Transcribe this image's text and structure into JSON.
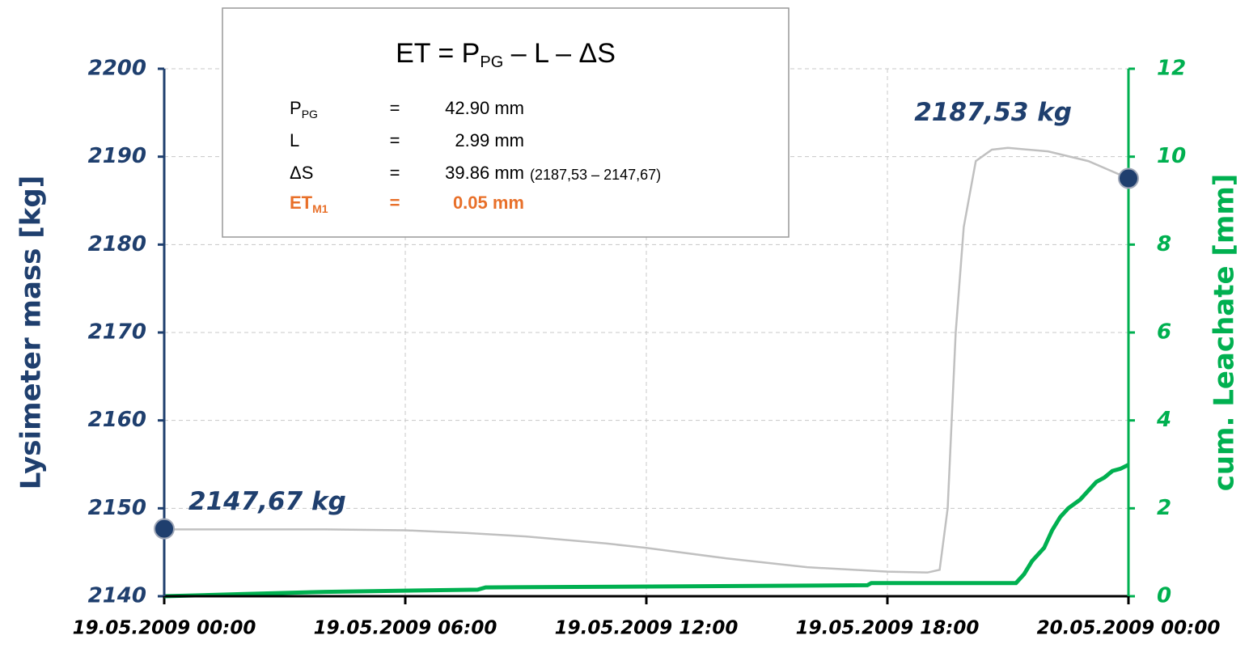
{
  "chart_data": {
    "type": "line",
    "y_label": "Lysimeter mass [kg]",
    "y2_label": "cum. Leachate [mm]",
    "xlim": [
      0,
      24
    ],
    "xticks": [
      {
        "value": 0,
        "label": "19.05.2009 00:00"
      },
      {
        "value": 6,
        "label": "19.05.2009 06:00"
      },
      {
        "value": 12,
        "label": "19.05.2009 12:00"
      },
      {
        "value": 18,
        "label": "19.05.2009 18:00"
      },
      {
        "value": 24,
        "label": "20.05.2009 00:00"
      }
    ],
    "ylim": [
      2140,
      2200
    ],
    "yticks": [
      2140,
      2150,
      2160,
      2170,
      2180,
      2190,
      2200
    ],
    "y2lim": [
      0,
      12
    ],
    "y2ticks": [
      0,
      2,
      4,
      6,
      8,
      10,
      12
    ],
    "grid": true,
    "series": [
      {
        "color": "#c0c0c0",
        "x": [
          0,
          0.1,
          4,
          6,
          7.5,
          9,
          11,
          12,
          14,
          16,
          18,
          19,
          19.3,
          19.5,
          19.7,
          19.9,
          20.2,
          20.6,
          21,
          22,
          23,
          24
        ],
        "values": [
          2147.67,
          2147.6,
          2147.6,
          2147.5,
          2147.2,
          2146.8,
          2146,
          2145.5,
          2144.3,
          2143.3,
          2142.8,
          2142.7,
          2143,
          2150,
          2170,
          2182,
          2189.5,
          2190.8,
          2191,
          2190.6,
          2189.5,
          2187.53
        ]
      },
      {
        "color": "#00b050",
        "axis": "y2",
        "x": [
          0,
          2,
          4,
          7.8,
          8,
          17.5,
          17.6,
          21.2,
          21.4,
          21.6,
          21.9,
          22.1,
          22.3,
          22.5,
          22.8,
          23,
          23.2,
          23.4,
          23.6,
          23.8,
          24
        ],
        "values": [
          0,
          0.05,
          0.1,
          0.15,
          0.2,
          0.25,
          0.3,
          0.3,
          0.5,
          0.8,
          1.1,
          1.5,
          1.8,
          2.0,
          2.2,
          2.4,
          2.6,
          2.7,
          2.85,
          2.9,
          2.99
        ]
      }
    ],
    "markers": {
      "color": "#1f3f6e",
      "x": [
        0,
        24
      ],
      "values": [
        2147.67,
        2187.53
      ],
      "value_labels": [
        "2147,67 kg",
        "2187,53 kg"
      ]
    }
  },
  "formula_box": {
    "title": {
      "a": "ET = P",
      "sub": "PG",
      "b": " – L – ΔS"
    },
    "rows": [
      {
        "name": "P",
        "sub": "PG",
        "eq": "=",
        "value": "42.90 mm"
      },
      {
        "name": "L",
        "eq": "=",
        "value": "2.99 mm"
      },
      {
        "name": "ΔS",
        "eq": "=",
        "value": "39.86 mm",
        "note": "(2187,53 – 2147,67)"
      },
      {
        "name": "ET",
        "sub": "M1",
        "eq": "=",
        "value": "0.05 mm"
      }
    ]
  }
}
